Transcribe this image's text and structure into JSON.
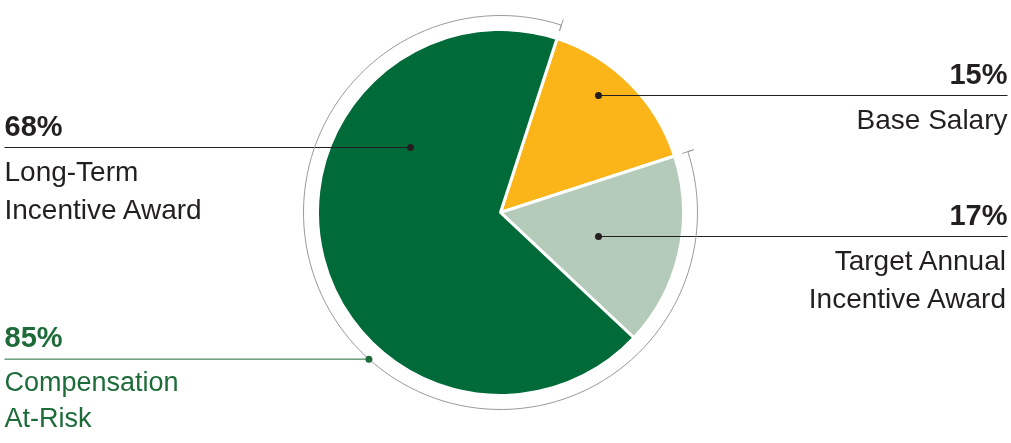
{
  "chart_data": {
    "type": "pie",
    "categories": [
      "Base Salary",
      "Target Annual Incentive Award",
      "Long-Term Incentive Award"
    ],
    "values": [
      15,
      17,
      68
    ],
    "colors": [
      "#fbb519",
      "#b4cbb9",
      "#006b38"
    ],
    "value_labels": [
      "15%",
      "17%",
      "68%"
    ],
    "annotations": [
      "85%",
      "Compensation At-Risk"
    ]
  }
}
